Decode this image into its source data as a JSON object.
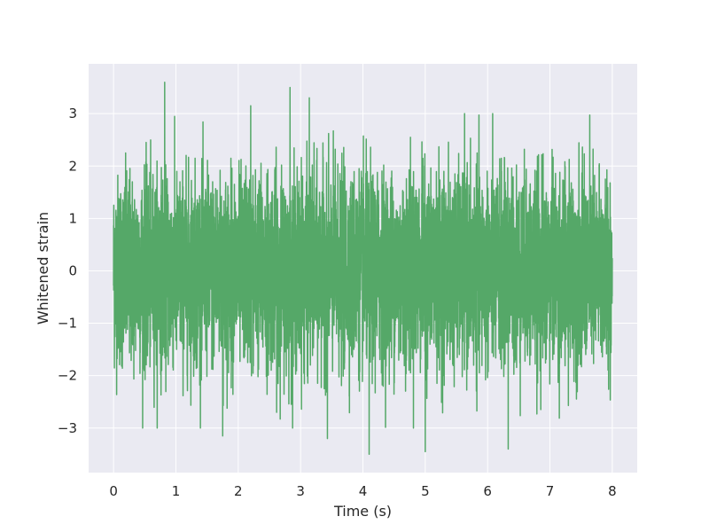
{
  "chart_data": {
    "type": "line",
    "title": "",
    "xlabel": "Time (s)",
    "ylabel": "Whitened strain",
    "xlim": [
      -0.4,
      8.4
    ],
    "ylim": [
      -3.85,
      3.95
    ],
    "xticks": [
      0,
      1,
      2,
      3,
      4,
      5,
      6,
      7,
      8
    ],
    "yticks": [
      -3,
      -2,
      -1,
      0,
      1,
      2,
      3
    ],
    "xtick_labels": [
      "0",
      "1",
      "2",
      "3",
      "4",
      "5",
      "6",
      "7",
      "8"
    ],
    "ytick_labels": [
      "−3",
      "−2",
      "−1",
      "0",
      "1",
      "2",
      "3"
    ],
    "grid": true,
    "legend": "none",
    "background": "#eaeaf2",
    "series_color": "#55a868",
    "series": [
      {
        "x_range": [
          0,
          8
        ],
        "sample_rate_hz": 4096,
        "description_values": "whitened strain noise, approximately gaussian, std ~0.9",
        "approx_min": -3.5,
        "approx_max": 3.6,
        "notable_peaks": [
          {
            "x": 0.82,
            "y": 3.6
          },
          {
            "x": 2.83,
            "y": 3.5
          },
          {
            "x": 3.14,
            "y": 3.3
          },
          {
            "x": 2.2,
            "y": 3.15
          },
          {
            "x": 4.1,
            "y": -3.5
          },
          {
            "x": 5.0,
            "y": -3.45
          },
          {
            "x": 6.33,
            "y": -3.4
          },
          {
            "x": 3.43,
            "y": -3.2
          },
          {
            "x": 1.75,
            "y": -3.15
          }
        ]
      }
    ]
  }
}
